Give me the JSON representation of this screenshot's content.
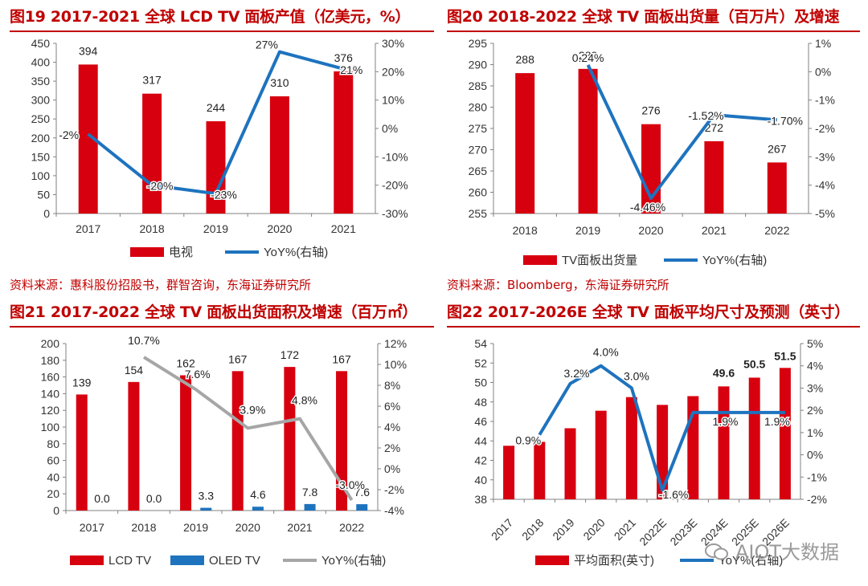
{
  "panels": [
    {
      "title": "图19 2017-2021 全球 LCD TV 面板产值（亿美元，%）",
      "source": "资料来源：惠科股份招股书，群智咨询，东海证券研究所",
      "chart_data": {
        "type": "bar",
        "categories": [
          "2017",
          "2018",
          "2019",
          "2020",
          "2021"
        ],
        "series": [
          {
            "name": "电视",
            "values": [
              394,
              317,
              244,
              310,
              376
            ],
            "color": "#d7000f",
            "axis": "left",
            "labels": [
              "394",
              "317",
              "244",
              "310",
              "376"
            ]
          }
        ],
        "line": {
          "name": "YoY%(右轴)",
          "values": [
            -2,
            -20,
            -23,
            27,
            21
          ],
          "color": "#1e73be",
          "labels": [
            "-2%",
            "-20%",
            "-23%",
            "27%",
            "21%"
          ]
        },
        "ylim": [
          0,
          450
        ],
        "ytick_step": 50,
        "y2lim": [
          -30,
          30
        ],
        "y2tick_step": 10,
        "y2_suffix": "%",
        "grid": false,
        "legend": "bottom"
      }
    },
    {
      "title": "图20 2018-2022 全球 TV 面板出货量（百万片）及增速",
      "source": "资料来源：Bloomberg，东海证券研究所",
      "chart_data": {
        "type": "bar",
        "categories": [
          "2018",
          "2019",
          "2020",
          "2021",
          "2022"
        ],
        "series": [
          {
            "name": "TV面板出货量",
            "values": [
              288,
              289,
              276,
              272,
              267
            ],
            "color": "#d7000f",
            "axis": "left",
            "labels": [
              "288",
              "289",
              "276",
              "272",
              "267"
            ]
          }
        ],
        "line": {
          "name": "YoY%(右轴)",
          "values": [
            null,
            0.24,
            -4.46,
            -1.52,
            -1.7
          ],
          "color": "#1e73be",
          "labels": [
            "",
            "0.24%",
            "-4.46%",
            "-1.52%",
            "-1.70%"
          ]
        },
        "ylim": [
          255,
          295
        ],
        "ytick_step": 5,
        "y2lim": [
          -5,
          1
        ],
        "y2tick_step": 1,
        "y2_suffix": "%",
        "grid": false,
        "legend": "bottom"
      }
    },
    {
      "title": "图21 2017-2022 全球 TV 面板出货面积及增速（百万㎡）",
      "source": "",
      "chart_data": {
        "type": "bar",
        "categories": [
          "2017",
          "2018",
          "2019",
          "2020",
          "2021",
          "2022"
        ],
        "series": [
          {
            "name": "LCD TV",
            "values": [
              139,
              154,
              162,
              167,
              172,
              167
            ],
            "color": "#d7000f",
            "axis": "left",
            "labels": [
              "139",
              "154",
              "162",
              "167",
              "172",
              "167"
            ]
          },
          {
            "name": "OLED TV",
            "values": [
              0.0,
              0.0,
              3.3,
              4.6,
              7.8,
              7.6
            ],
            "color": "#1e73be",
            "axis": "left",
            "labels": [
              "0.0",
              "0.0",
              "3.3",
              "4.6",
              "7.8",
              "7.6"
            ]
          }
        ],
        "line": {
          "name": "YoY%(右轴)",
          "values": [
            null,
            10.7,
            7.6,
            3.9,
            4.8,
            -3.0
          ],
          "color": "#a6a6a6",
          "labels": [
            "",
            "10.7%",
            "7.6%",
            "3.9%",
            "4.8%",
            "-3.0%"
          ]
        },
        "ylim": [
          0,
          200
        ],
        "ytick_step": 20,
        "y2lim": [
          -4,
          12
        ],
        "y2tick_step": 2,
        "y2_suffix": "%",
        "grid": false,
        "legend": "bottom"
      }
    },
    {
      "title": "图22 2017-2026E 全球 TV 面板平均尺寸及预测（英寸）",
      "source": "",
      "chart_data": {
        "type": "bar",
        "categories": [
          "2017",
          "2018",
          "2019",
          "2020",
          "2021",
          "2022E",
          "2023E",
          "2024E",
          "2025E",
          "2026E"
        ],
        "series": [
          {
            "name": "平均面积(英寸)",
            "values": [
              43.5,
              43.9,
              45.3,
              47.1,
              48.5,
              47.7,
              48.6,
              49.6,
              50.5,
              51.5
            ],
            "color": "#d7000f",
            "axis": "left",
            "labels": [
              "",
              "",
              "",
              "",
              "",
              "",
              "",
              "49.6",
              "50.5",
              "51.5"
            ]
          }
        ],
        "line": {
          "name": "YoY%(右轴)",
          "values": [
            null,
            0.9,
            3.2,
            4.0,
            3.0,
            -1.6,
            1.9,
            1.9,
            1.9,
            1.9
          ],
          "color": "#1e73be",
          "labels": [
            "",
            "0.9%",
            "3.2%",
            "4.0%",
            "3.0%",
            "-1.6%",
            "",
            "1.9%",
            "",
            "1.9%"
          ]
        },
        "ylim": [
          38,
          54
        ],
        "ytick_step": 2,
        "y2lim": [
          -2,
          5
        ],
        "y2tick_step": 1,
        "y2_suffix": "%",
        "grid": false,
        "legend": "bottom"
      }
    }
  ],
  "watermark": "AIOT大数据"
}
